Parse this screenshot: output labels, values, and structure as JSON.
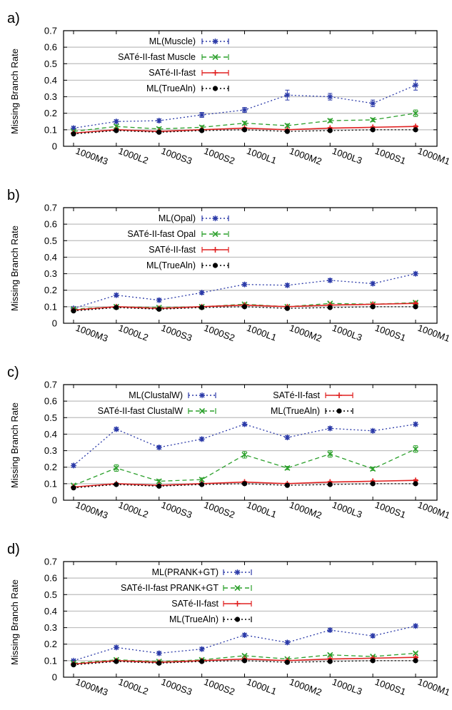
{
  "chart_data": [
    {
      "type": "line",
      "panel_label": "a)",
      "ylabel": "Missing Branch Rate",
      "xlabel": "",
      "ylim": [
        0,
        0.7
      ],
      "yticks": [
        "0",
        "0.1",
        "0.2",
        "0.3",
        "0.4",
        "0.5",
        "0.6",
        "0.7"
      ],
      "grid": "horizontal",
      "legend_placement": "top-center",
      "categories": [
        "1000M3",
        "1000L2",
        "1000S3",
        "1000S2",
        "1000L1",
        "1000M2",
        "1000L3",
        "1000S1",
        "1000M1"
      ],
      "series": [
        {
          "name": "ML(Muscle)",
          "color": "#2b3aa8",
          "dash": "dotted",
          "marker": "star",
          "values": [
            0.11,
            0.15,
            0.155,
            0.19,
            0.22,
            0.31,
            0.3,
            0.26,
            0.37
          ],
          "errors": [
            0.01,
            0.01,
            0.01,
            0.015,
            0.015,
            0.03,
            0.02,
            0.02,
            0.03
          ]
        },
        {
          "name": "SATé-II-fast Muscle",
          "color": "#2ca02c",
          "dash": "dashed",
          "marker": "x",
          "values": [
            0.09,
            0.12,
            0.105,
            0.115,
            0.14,
            0.125,
            0.155,
            0.16,
            0.2
          ],
          "errors": [
            0.005,
            0.01,
            0.01,
            0.01,
            0.01,
            0.01,
            0.01,
            0.01,
            0.02
          ]
        },
        {
          "name": "SATé-II-fast",
          "color": "#e02020",
          "dash": "solid",
          "marker": "plus",
          "values": [
            0.08,
            0.1,
            0.09,
            0.1,
            0.11,
            0.1,
            0.11,
            0.115,
            0.12
          ],
          "errors": [
            0.005,
            0.005,
            0.005,
            0.005,
            0.005,
            0.005,
            0.005,
            0.005,
            0.005
          ]
        },
        {
          "name": "ML(TrueAln)",
          "color": "#000000",
          "dash": "dotted",
          "marker": "circle",
          "values": [
            0.075,
            0.095,
            0.085,
            0.095,
            0.1,
            0.09,
            0.095,
            0.1,
            0.1
          ],
          "errors": [
            0.005,
            0.005,
            0.005,
            0.005,
            0.005,
            0.005,
            0.005,
            0.005,
            0.005
          ]
        }
      ]
    },
    {
      "type": "line",
      "panel_label": "b)",
      "ylabel": "Missing Branch Rate",
      "xlabel": "",
      "ylim": [
        0,
        0.7
      ],
      "yticks": [
        "0",
        "0.1",
        "0.2",
        "0.3",
        "0.4",
        "0.5",
        "0.6",
        "0.7"
      ],
      "grid": "horizontal",
      "legend_placement": "top-center",
      "categories": [
        "1000M3",
        "1000L2",
        "1000S3",
        "1000S2",
        "1000L1",
        "1000M2",
        "1000L3",
        "1000S1",
        "1000M1"
      ],
      "series": [
        {
          "name": "ML(Opal)",
          "color": "#2b3aa8",
          "dash": "dotted",
          "marker": "star",
          "values": [
            0.09,
            0.17,
            0.14,
            0.185,
            0.235,
            0.23,
            0.26,
            0.24,
            0.3
          ],
          "errors": [
            0.005,
            0.01,
            0.01,
            0.01,
            0.01,
            0.01,
            0.01,
            0.01,
            0.01
          ]
        },
        {
          "name": "SATé-II-fast Opal",
          "color": "#2ca02c",
          "dash": "dashed",
          "marker": "x",
          "values": [
            0.085,
            0.1,
            0.095,
            0.1,
            0.115,
            0.1,
            0.12,
            0.115,
            0.125
          ],
          "errors": [
            0.005,
            0.005,
            0.005,
            0.005,
            0.005,
            0.005,
            0.005,
            0.005,
            0.005
          ]
        },
        {
          "name": "SATé-II-fast",
          "color": "#e02020",
          "dash": "solid",
          "marker": "plus",
          "values": [
            0.08,
            0.1,
            0.09,
            0.1,
            0.11,
            0.1,
            0.11,
            0.115,
            0.12
          ],
          "errors": [
            0.005,
            0.005,
            0.005,
            0.005,
            0.005,
            0.005,
            0.005,
            0.005,
            0.005
          ]
        },
        {
          "name": "ML(TrueAln)",
          "color": "#000000",
          "dash": "dotted",
          "marker": "circle",
          "values": [
            0.075,
            0.095,
            0.085,
            0.095,
            0.1,
            0.09,
            0.095,
            0.1,
            0.1
          ],
          "errors": [
            0.005,
            0.005,
            0.005,
            0.005,
            0.005,
            0.005,
            0.005,
            0.005,
            0.005
          ]
        }
      ]
    },
    {
      "type": "line",
      "panel_label": "c)",
      "ylabel": "Missing Branch Rate",
      "xlabel": "",
      "ylim": [
        0,
        0.7
      ],
      "yticks": [
        "0",
        "0.1",
        "0.2",
        "0.3",
        "0.4",
        "0.5",
        "0.6",
        "0.7"
      ],
      "grid": "horizontal",
      "legend_placement": "top-center (two columns)",
      "categories": [
        "1000M3",
        "1000L2",
        "1000S3",
        "1000S2",
        "1000L1",
        "1000M2",
        "1000L3",
        "1000S1",
        "1000M1"
      ],
      "series": [
        {
          "name": "ML(ClustalW)",
          "color": "#2b3aa8",
          "dash": "dotted",
          "marker": "star",
          "values": [
            0.21,
            0.43,
            0.32,
            0.37,
            0.46,
            0.38,
            0.435,
            0.42,
            0.46
          ],
          "errors": [
            0.01,
            0.01,
            0.01,
            0.01,
            0.01,
            0.01,
            0.01,
            0.01,
            0.01
          ]
        },
        {
          "name": "SATé-II-fast ClustalW",
          "color": "#2ca02c",
          "dash": "dashed",
          "marker": "x",
          "values": [
            0.09,
            0.195,
            0.115,
            0.125,
            0.275,
            0.195,
            0.28,
            0.19,
            0.31
          ],
          "errors": [
            0.005,
            0.02,
            0.01,
            0.01,
            0.02,
            0.01,
            0.02,
            0.01,
            0.02
          ]
        },
        {
          "name": "SATé-II-fast",
          "color": "#e02020",
          "dash": "solid",
          "marker": "plus",
          "values": [
            0.08,
            0.1,
            0.09,
            0.1,
            0.11,
            0.1,
            0.11,
            0.115,
            0.12
          ],
          "errors": [
            0.005,
            0.005,
            0.005,
            0.005,
            0.005,
            0.005,
            0.005,
            0.005,
            0.005
          ]
        },
        {
          "name": "ML(TrueAln)",
          "color": "#000000",
          "dash": "dotted",
          "marker": "circle",
          "values": [
            0.075,
            0.095,
            0.085,
            0.095,
            0.1,
            0.09,
            0.095,
            0.1,
            0.1
          ],
          "errors": [
            0.005,
            0.005,
            0.005,
            0.005,
            0.005,
            0.005,
            0.005,
            0.005,
            0.005
          ]
        }
      ]
    },
    {
      "type": "line",
      "panel_label": "d)",
      "ylabel": "Missing Branch Rate",
      "xlabel": "",
      "ylim": [
        0,
        0.7
      ],
      "yticks": [
        "0",
        "0.1",
        "0.2",
        "0.3",
        "0.4",
        "0.5",
        "0.6",
        "0.7"
      ],
      "grid": "horizontal",
      "legend_placement": "top-center",
      "categories": [
        "1000M3",
        "1000L2",
        "1000S3",
        "1000S2",
        "1000L1",
        "1000M2",
        "1000L3",
        "1000S1",
        "1000M1"
      ],
      "series": [
        {
          "name": "ML(PRANK+GT)",
          "color": "#2b3aa8",
          "dash": "dotted",
          "marker": "star",
          "values": [
            0.1,
            0.18,
            0.145,
            0.17,
            0.255,
            0.21,
            0.285,
            0.25,
            0.31
          ],
          "errors": [
            0.005,
            0.01,
            0.01,
            0.01,
            0.01,
            0.01,
            0.01,
            0.01,
            0.01
          ]
        },
        {
          "name": "SATé-II-fast PRANK+GT",
          "color": "#2ca02c",
          "dash": "dashed",
          "marker": "x",
          "values": [
            0.085,
            0.105,
            0.095,
            0.105,
            0.13,
            0.11,
            0.135,
            0.125,
            0.145
          ],
          "errors": [
            0.005,
            0.005,
            0.005,
            0.005,
            0.005,
            0.005,
            0.005,
            0.005,
            0.005
          ]
        },
        {
          "name": "SATé-II-fast",
          "color": "#e02020",
          "dash": "solid",
          "marker": "plus",
          "values": [
            0.08,
            0.1,
            0.09,
            0.1,
            0.11,
            0.1,
            0.11,
            0.115,
            0.12
          ],
          "errors": [
            0.005,
            0.005,
            0.005,
            0.005,
            0.005,
            0.005,
            0.005,
            0.005,
            0.005
          ]
        },
        {
          "name": "ML(TrueAln)",
          "color": "#000000",
          "dash": "dotted",
          "marker": "circle",
          "values": [
            0.075,
            0.095,
            0.085,
            0.095,
            0.1,
            0.09,
            0.095,
            0.1,
            0.1
          ],
          "errors": [
            0.005,
            0.005,
            0.005,
            0.005,
            0.005,
            0.005,
            0.005,
            0.005,
            0.005
          ]
        }
      ]
    }
  ]
}
